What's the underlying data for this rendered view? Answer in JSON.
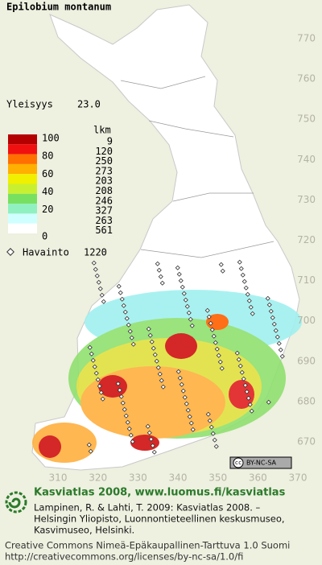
{
  "title": "Epilobium montanum",
  "frequency": {
    "label": "Yleisyys",
    "value": "23.0"
  },
  "legend": {
    "scale_labels": [
      "100",
      "80",
      "60",
      "40",
      "20",
      "0"
    ],
    "colors": [
      "#b40000",
      "#f01010",
      "#ff7000",
      "#ffb000",
      "#f0f000",
      "#c8f030",
      "#78e060",
      "#90f0c0",
      "#d0ffff",
      "#ffffff"
    ],
    "count_header": "lkm",
    "counts": [
      9,
      120,
      250,
      273,
      203,
      208,
      246,
      327,
      263,
      561
    ]
  },
  "observations": {
    "label": "Havainto",
    "count": 1220
  },
  "map": {
    "y_ticks": [
      770,
      760,
      750,
      740,
      730,
      720,
      710,
      700,
      690,
      680,
      670
    ],
    "x_ticks": [
      310,
      320,
      330,
      340,
      350,
      360,
      370
    ]
  },
  "badge": {
    "cc": "cc",
    "text": "BY-NC-SA"
  },
  "footer": {
    "heading": "Kasviatlas 2008, www.luomus.fi/kasviatlas",
    "citation": [
      "Lampinen, R. & Lahti, T. 2009: Kasviatlas 2008. –",
      "Helsingin Yliopisto, Luonnontieteellinen keskusmuseo,",
      "Kasvimuseo, Helsinki."
    ],
    "license": [
      "Creative Commons Nimeä-Epäkaupallinen-Tarttuva 1.0 Suomi",
      "http://creativecommons.org/licenses/by-nc-sa/1.0/fi"
    ]
  }
}
